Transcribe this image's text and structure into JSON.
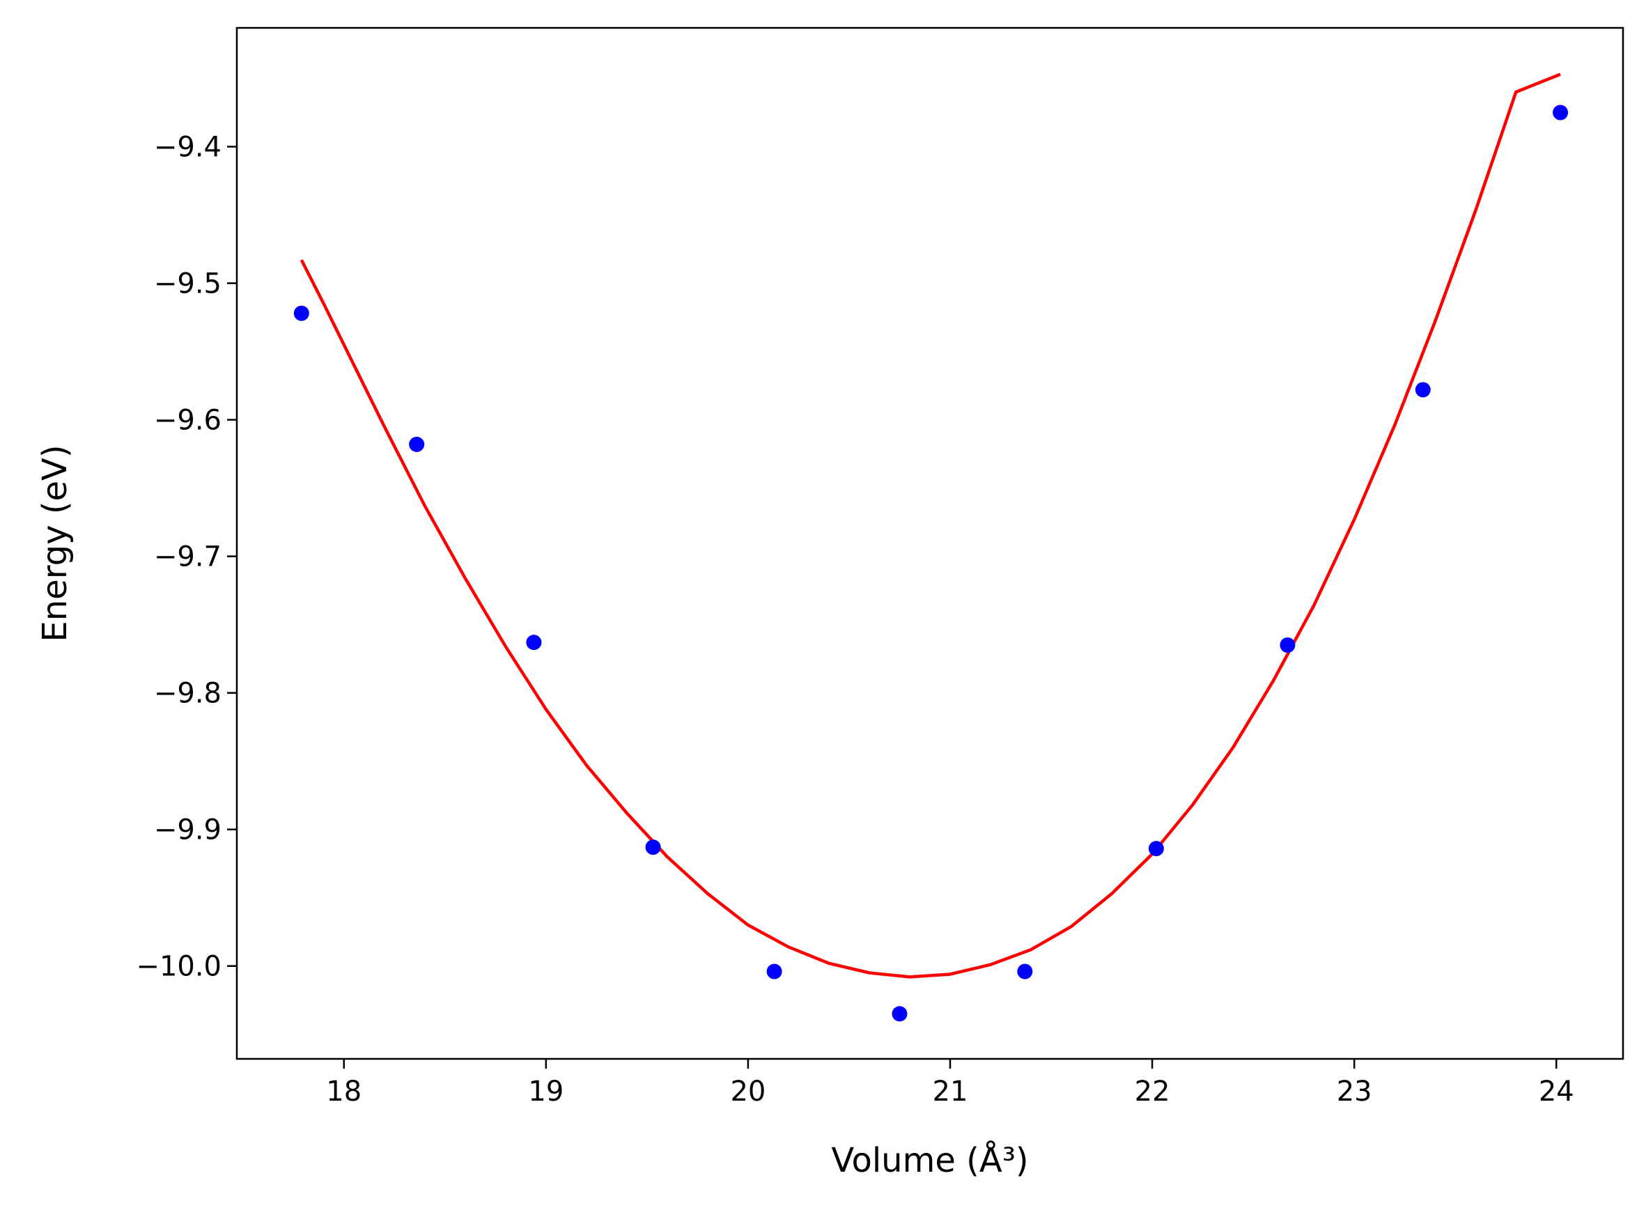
{
  "chart_data": {
    "type": "scatter",
    "xlabel": "Volume (Å³)",
    "ylabel": "Energy (eV)",
    "xlim": [
      17.47,
      24.33
    ],
    "ylim": [
      -10.068,
      -9.313
    ],
    "xticks": [
      18,
      19,
      20,
      21,
      22,
      23,
      24
    ],
    "yticks": [
      -10.0,
      -9.9,
      -9.8,
      -9.7,
      -9.6,
      -9.5,
      -9.4
    ],
    "xtick_labels": [
      "18",
      "19",
      "20",
      "21",
      "22",
      "23",
      "24"
    ],
    "ytick_labels": [
      "−10.0",
      "−9.9",
      "−9.8",
      "−9.7",
      "−9.6",
      "−9.5",
      "−9.4"
    ],
    "grid": false,
    "series": [
      {
        "kind": "scatter",
        "color": "#0000ff",
        "x": [
          17.79,
          18.36,
          18.94,
          19.53,
          20.13,
          20.75,
          21.37,
          22.02,
          22.67,
          23.34,
          24.02
        ],
        "y": [
          -9.522,
          -9.618,
          -9.763,
          -9.913,
          -10.004,
          -10.035,
          -10.004,
          -9.914,
          -9.765,
          -9.578,
          -9.375
        ]
      },
      {
        "kind": "line",
        "color": "#ff0000",
        "x": [
          17.79,
          17.9,
          18.0,
          18.2,
          18.4,
          18.6,
          18.8,
          19.0,
          19.2,
          19.4,
          19.6,
          19.8,
          20.0,
          20.2,
          20.4,
          20.6,
          20.8,
          21.0,
          21.2,
          21.4,
          21.6,
          21.8,
          22.0,
          22.2,
          22.4,
          22.6,
          22.8,
          23.0,
          23.2,
          23.4,
          23.6,
          23.8,
          24.02
        ],
        "y": [
          -9.483,
          -9.515,
          -9.545,
          -9.605,
          -9.663,
          -9.716,
          -9.766,
          -9.812,
          -9.853,
          -9.888,
          -9.92,
          -9.947,
          -9.97,
          -9.986,
          -9.998,
          -10.005,
          -10.008,
          -10.006,
          -9.999,
          -9.988,
          -9.971,
          -9.947,
          -9.918,
          -9.882,
          -9.84,
          -9.791,
          -9.736,
          -9.673,
          -9.604,
          -9.528,
          -9.447,
          -9.36,
          -9.347
        ]
      }
    ]
  }
}
